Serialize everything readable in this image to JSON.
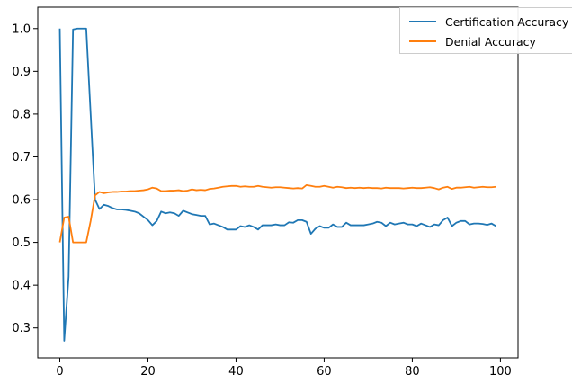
{
  "chart_data": {
    "type": "line",
    "title": "",
    "xlabel": "",
    "ylabel": "",
    "xlim": [
      -5,
      104
    ],
    "ylim": [
      0.23,
      1.05
    ],
    "x_ticks": [
      0,
      20,
      40,
      60,
      80,
      100
    ],
    "y_ticks": [
      0.3,
      0.4,
      0.5,
      0.6,
      0.7,
      0.8,
      0.9,
      1.0
    ],
    "x_tick_labels": [
      "0",
      "20",
      "40",
      "60",
      "80",
      "100"
    ],
    "y_tick_labels": [
      "0.3",
      "0.4",
      "0.5",
      "0.6",
      "0.7",
      "0.8",
      "0.9",
      "1.0"
    ],
    "grid": false,
    "legend_position": "top-right",
    "series": [
      {
        "name": "Certification Accuracy",
        "color": "#1f77b4",
        "x": [
          0,
          1,
          2,
          3,
          4,
          5,
          6,
          7,
          8,
          9,
          10,
          11,
          12,
          13,
          14,
          15,
          16,
          17,
          18,
          19,
          20,
          21,
          22,
          23,
          24,
          25,
          26,
          27,
          28,
          29,
          30,
          31,
          32,
          33,
          34,
          35,
          36,
          37,
          38,
          39,
          40,
          41,
          42,
          43,
          44,
          45,
          46,
          47,
          48,
          49,
          50,
          51,
          52,
          53,
          54,
          55,
          56,
          57,
          58,
          59,
          60,
          61,
          62,
          63,
          64,
          65,
          66,
          67,
          68,
          69,
          70,
          71,
          72,
          73,
          74,
          75,
          76,
          77,
          78,
          79,
          80,
          81,
          82,
          83,
          84,
          85,
          86,
          87,
          88,
          89,
          90,
          91,
          92,
          93,
          94,
          95,
          96,
          97,
          98,
          99
        ],
        "values": [
          1.0,
          0.27,
          0.42,
          0.998,
          1.0,
          1.0,
          1.0,
          0.8,
          0.6,
          0.578,
          0.588,
          0.585,
          0.58,
          0.577,
          0.577,
          0.576,
          0.574,
          0.572,
          0.568,
          0.56,
          0.552,
          0.54,
          0.55,
          0.572,
          0.568,
          0.57,
          0.568,
          0.562,
          0.574,
          0.57,
          0.566,
          0.564,
          0.562,
          0.562,
          0.542,
          0.544,
          0.54,
          0.536,
          0.53,
          0.53,
          0.53,
          0.538,
          0.536,
          0.54,
          0.536,
          0.53,
          0.54,
          0.54,
          0.54,
          0.542,
          0.54,
          0.54,
          0.547,
          0.546,
          0.552,
          0.552,
          0.548,
          0.52,
          0.532,
          0.538,
          0.534,
          0.534,
          0.542,
          0.536,
          0.536,
          0.546,
          0.54,
          0.54,
          0.54,
          0.54,
          0.542,
          0.544,
          0.548,
          0.546,
          0.538,
          0.546,
          0.542,
          0.544,
          0.546,
          0.542,
          0.542,
          0.538,
          0.544,
          0.54,
          0.536,
          0.542,
          0.54,
          0.552,
          0.558,
          0.538,
          0.546,
          0.55,
          0.55,
          0.542,
          0.544,
          0.544,
          0.543,
          0.541,
          0.544,
          0.538
        ]
      },
      {
        "name": "Denial Accuracy",
        "color": "#ff7f0e",
        "x": [
          0,
          1,
          2,
          3,
          4,
          5,
          6,
          7,
          8,
          9,
          10,
          11,
          12,
          13,
          14,
          15,
          16,
          17,
          18,
          19,
          20,
          21,
          22,
          23,
          24,
          25,
          26,
          27,
          28,
          29,
          30,
          31,
          32,
          33,
          34,
          35,
          36,
          37,
          38,
          39,
          40,
          41,
          42,
          43,
          44,
          45,
          46,
          47,
          48,
          49,
          50,
          51,
          52,
          53,
          54,
          55,
          56,
          57,
          58,
          59,
          60,
          61,
          62,
          63,
          64,
          65,
          66,
          67,
          68,
          69,
          70,
          71,
          72,
          73,
          74,
          75,
          76,
          77,
          78,
          79,
          80,
          81,
          82,
          83,
          84,
          85,
          86,
          87,
          88,
          89,
          90,
          91,
          92,
          93,
          94,
          95,
          96,
          97,
          98,
          99
        ],
        "values": [
          0.5,
          0.558,
          0.56,
          0.5,
          0.5,
          0.5,
          0.5,
          0.55,
          0.61,
          0.618,
          0.615,
          0.617,
          0.618,
          0.618,
          0.619,
          0.619,
          0.62,
          0.62,
          0.621,
          0.622,
          0.624,
          0.628,
          0.626,
          0.62,
          0.62,
          0.621,
          0.621,
          0.622,
          0.62,
          0.621,
          0.624,
          0.622,
          0.623,
          0.622,
          0.625,
          0.626,
          0.628,
          0.63,
          0.631,
          0.632,
          0.632,
          0.63,
          0.631,
          0.63,
          0.63,
          0.632,
          0.63,
          0.629,
          0.628,
          0.629,
          0.629,
          0.628,
          0.627,
          0.626,
          0.627,
          0.626,
          0.634,
          0.632,
          0.63,
          0.63,
          0.632,
          0.63,
          0.628,
          0.63,
          0.629,
          0.627,
          0.628,
          0.627,
          0.628,
          0.627,
          0.628,
          0.627,
          0.627,
          0.626,
          0.628,
          0.627,
          0.627,
          0.627,
          0.626,
          0.627,
          0.628,
          0.627,
          0.627,
          0.628,
          0.629,
          0.627,
          0.624,
          0.628,
          0.63,
          0.625,
          0.628,
          0.628,
          0.629,
          0.63,
          0.628,
          0.629,
          0.63,
          0.629,
          0.629,
          0.63
        ]
      }
    ]
  }
}
